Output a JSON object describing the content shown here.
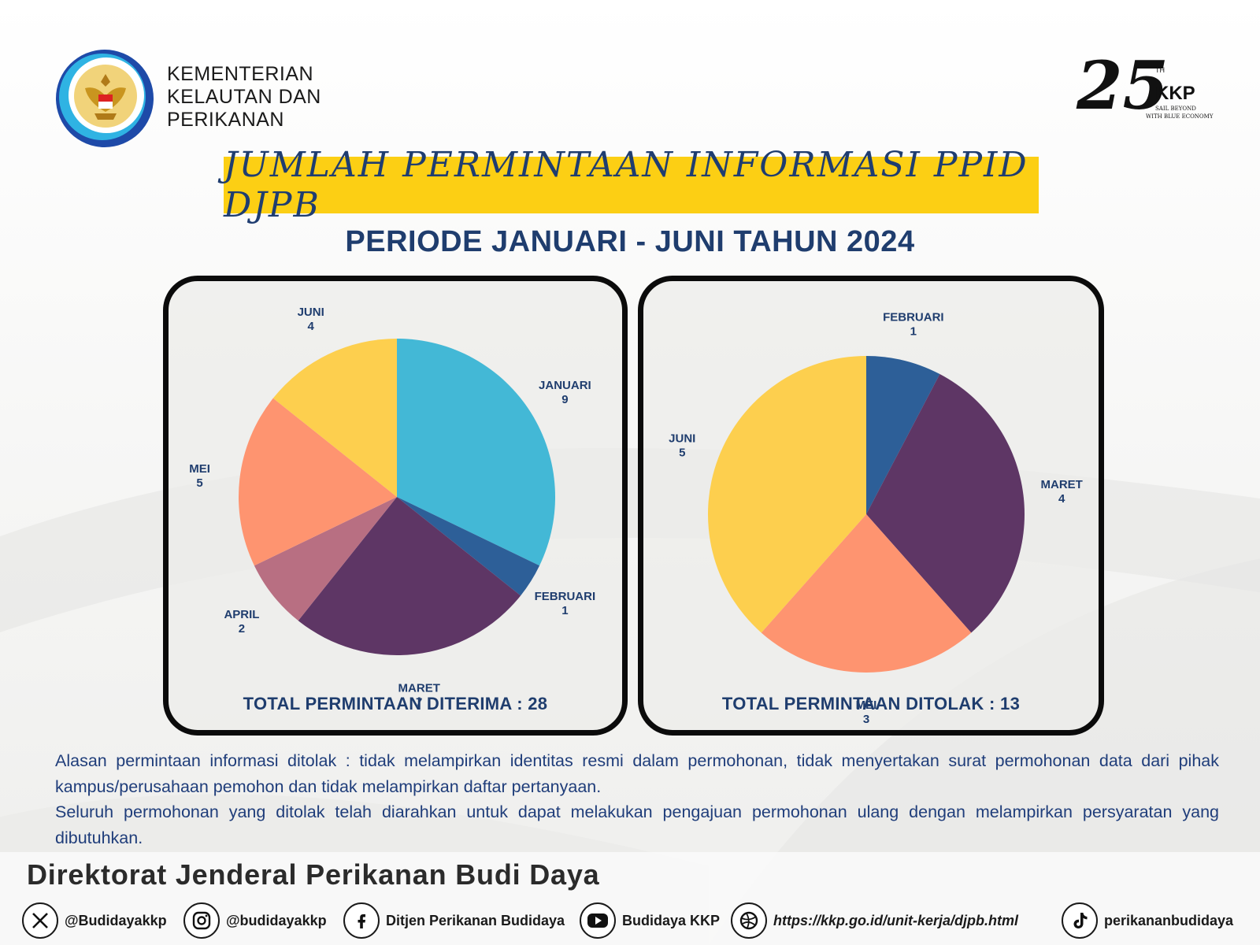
{
  "header": {
    "ministry_lines": [
      "KEMENTERIAN",
      "KELAUTAN DAN",
      "PERIKANAN"
    ],
    "logo_25": {
      "number": "25",
      "sup": "TH",
      "brand": "KKP",
      "tagline1": "SAIL BEYOND",
      "tagline2": "WITH BLUE ECONOMY"
    }
  },
  "title": "JUMLAH PERMINTAAN INFORMASI PPID DJPB",
  "subtitle": "PERIODE JANUARI - JUNI TAHUN 2024",
  "chart_data": [
    {
      "type": "pie",
      "categories": [
        "JANUARI",
        "FEBRUARI",
        "MARET",
        "APRIL",
        "MEI",
        "JUNI"
      ],
      "values": [
        9,
        1,
        7,
        2,
        5,
        4
      ],
      "colors": [
        "#43b8d6",
        "#2d5f98",
        "#5e3665",
        "#b86f82",
        "#fe9470",
        "#fdcf4e"
      ],
      "caption": "TOTAL PERMINTAAN DITERIMA : 28"
    },
    {
      "type": "pie",
      "categories": [
        "FEBRUARI",
        "MARET",
        "MEI",
        "JUNI"
      ],
      "values": [
        1,
        4,
        3,
        5
      ],
      "colors": [
        "#2d5f98",
        "#5e3665",
        "#fe9470",
        "#fdcf4e"
      ],
      "caption": "TOTAL PERMINTAAN DITOLAK : 13"
    }
  ],
  "body": {
    "paragraph1": "Alasan permintaan informasi ditolak : tidak melampirkan identitas resmi dalam permohonan, tidak menyertakan surat permohonan data dari pihak kampus/perusahaan pemohon dan tidak melampirkan daftar pertanyaan.",
    "paragraph2": "Seluruh permohonan yang ditolak telah diarahkan untuk dapat melakukan pengajuan permohonan ulang dengan melampirkan persyaratan yang dibutuhkan."
  },
  "footer": {
    "org": "Direktorat Jenderal Perikanan Budi Daya",
    "socials": [
      {
        "icon": "x-twitter-icon",
        "label": "@Budidayakkp"
      },
      {
        "icon": "instagram-icon",
        "label": "@budidayakkp"
      },
      {
        "icon": "facebook-icon",
        "label": "Ditjen Perikanan Budidaya"
      },
      {
        "icon": "youtube-icon",
        "label": "Budidaya KKP"
      },
      {
        "icon": "web-icon",
        "label": "https://kkp.go.id/unit-kerja/djpb.html"
      },
      {
        "icon": "tiktok-icon",
        "label": "perikananbudidaya"
      }
    ]
  }
}
